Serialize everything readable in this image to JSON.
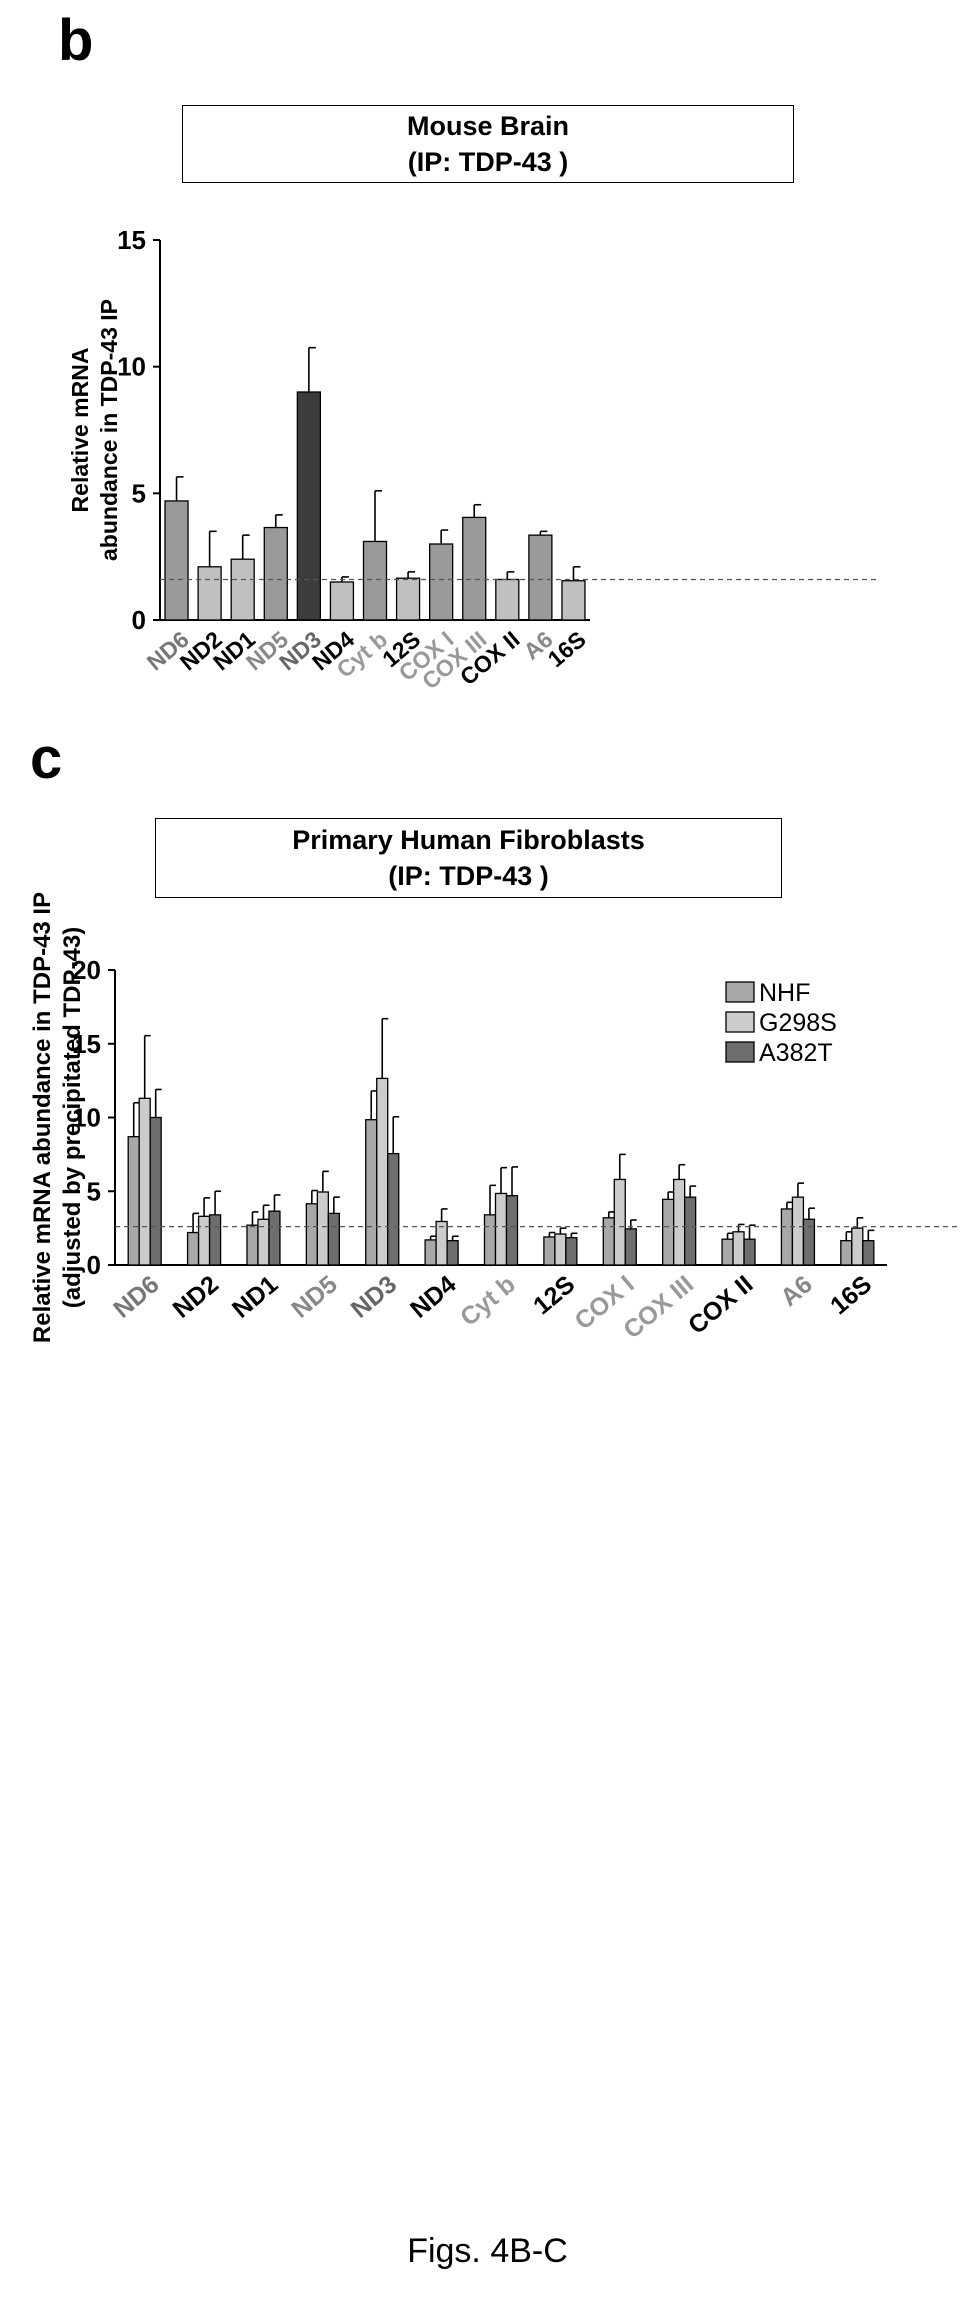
{
  "figure": {
    "caption": "Figs. 4B-C",
    "panel_b": {
      "letter": "b",
      "title_line1": "Mouse Brain",
      "title_line2": "(IP: TDP-43 )"
    },
    "panel_c": {
      "letter": "c",
      "title_line1": "Primary Human Fibroblasts",
      "title_line2": "(IP: TDP-43 )"
    }
  },
  "chart_data": [
    {
      "type": "bar",
      "title": "Mouse Brain",
      "subtitle": "(IP: TDP-43 )",
      "ylabel": [
        "Relative mRNA",
        "abundance in TDP-43 IP"
      ],
      "xlabel": "",
      "ylim": [
        0,
        15
      ],
      "yticks": [
        0,
        5,
        10,
        15
      ],
      "grid": false,
      "reference_line": 1.6,
      "categories": [
        "ND6",
        "ND2",
        "ND1",
        "ND5",
        "ND3",
        "ND4",
        "Cyt b",
        "12S",
        "COX I",
        "COX III",
        "COX II",
        "A6",
        "16S"
      ],
      "category_label_colors": [
        "#777777",
        "#000000",
        "#000000",
        "#888888",
        "#666666",
        "#000000",
        "#999999",
        "#000000",
        "#999999",
        "#999999",
        "#000000",
        "#888888",
        "#000000"
      ],
      "values": [
        4.7,
        2.1,
        2.4,
        3.65,
        9.0,
        1.5,
        3.1,
        1.65,
        3.0,
        4.05,
        1.6,
        3.35,
        1.55
      ],
      "errors": [
        0.95,
        1.4,
        0.95,
        0.5,
        1.75,
        0.2,
        2.0,
        0.25,
        0.55,
        0.5,
        0.3,
        0.15,
        0.55
      ],
      "bar_colors": [
        "#9a9a9a",
        "#c0c0c0",
        "#c0c0c0",
        "#9a9a9a",
        "#3c3c3c",
        "#c0c0c0",
        "#9a9a9a",
        "#c0c0c0",
        "#9a9a9a",
        "#9a9a9a",
        "#c0c0c0",
        "#9a9a9a",
        "#c0c0c0"
      ]
    },
    {
      "type": "bar",
      "title": "Primary Human Fibroblasts",
      "subtitle": "(IP: TDP-43 )",
      "ylabel": [
        "Relative mRNA abundance in TDP-43 IP",
        "(adjusted by precipitated TDP-43)"
      ],
      "xlabel": "",
      "ylim": [
        0,
        20
      ],
      "yticks": [
        0,
        5,
        10,
        15,
        20
      ],
      "grid": false,
      "reference_line": 2.6,
      "legend_position": "top-right",
      "categories": [
        "ND6",
        "ND2",
        "ND1",
        "ND5",
        "ND3",
        "ND4",
        "Cyt b",
        "12S",
        "COX I",
        "COX III",
        "COX II",
        "A6",
        "16S"
      ],
      "category_label_colors": [
        "#777777",
        "#000000",
        "#000000",
        "#888888",
        "#666666",
        "#000000",
        "#999999",
        "#000000",
        "#999999",
        "#999999",
        "#000000",
        "#888888",
        "#000000"
      ],
      "series": [
        {
          "name": "NHF",
          "color": "#a8a8a8",
          "values": [
            8.7,
            2.2,
            2.7,
            4.15,
            9.85,
            1.7,
            3.4,
            1.9,
            3.2,
            4.45,
            1.75,
            3.8,
            1.65
          ],
          "errors": [
            2.3,
            1.3,
            0.9,
            0.9,
            1.95,
            0.25,
            2.0,
            0.3,
            0.4,
            0.5,
            0.4,
            0.45,
            0.6
          ]
        },
        {
          "name": "G298S",
          "color": "#cccccc",
          "values": [
            11.3,
            3.3,
            3.1,
            4.95,
            12.65,
            2.95,
            4.85,
            2.1,
            5.8,
            5.8,
            2.25,
            4.6,
            2.5
          ],
          "errors": [
            4.25,
            1.25,
            0.95,
            1.4,
            4.05,
            0.85,
            1.75,
            0.4,
            1.7,
            1.0,
            0.5,
            0.95,
            0.7
          ]
        },
        {
          "name": "A382T",
          "color": "#6e6e6e",
          "values": [
            10.0,
            3.4,
            3.65,
            3.5,
            7.55,
            1.65,
            4.7,
            1.85,
            2.45,
            4.6,
            1.75,
            3.1,
            1.65
          ],
          "errors": [
            1.9,
            1.6,
            1.1,
            1.1,
            2.5,
            0.3,
            1.95,
            0.3,
            0.6,
            0.75,
            0.95,
            0.75,
            0.7
          ]
        }
      ]
    }
  ]
}
